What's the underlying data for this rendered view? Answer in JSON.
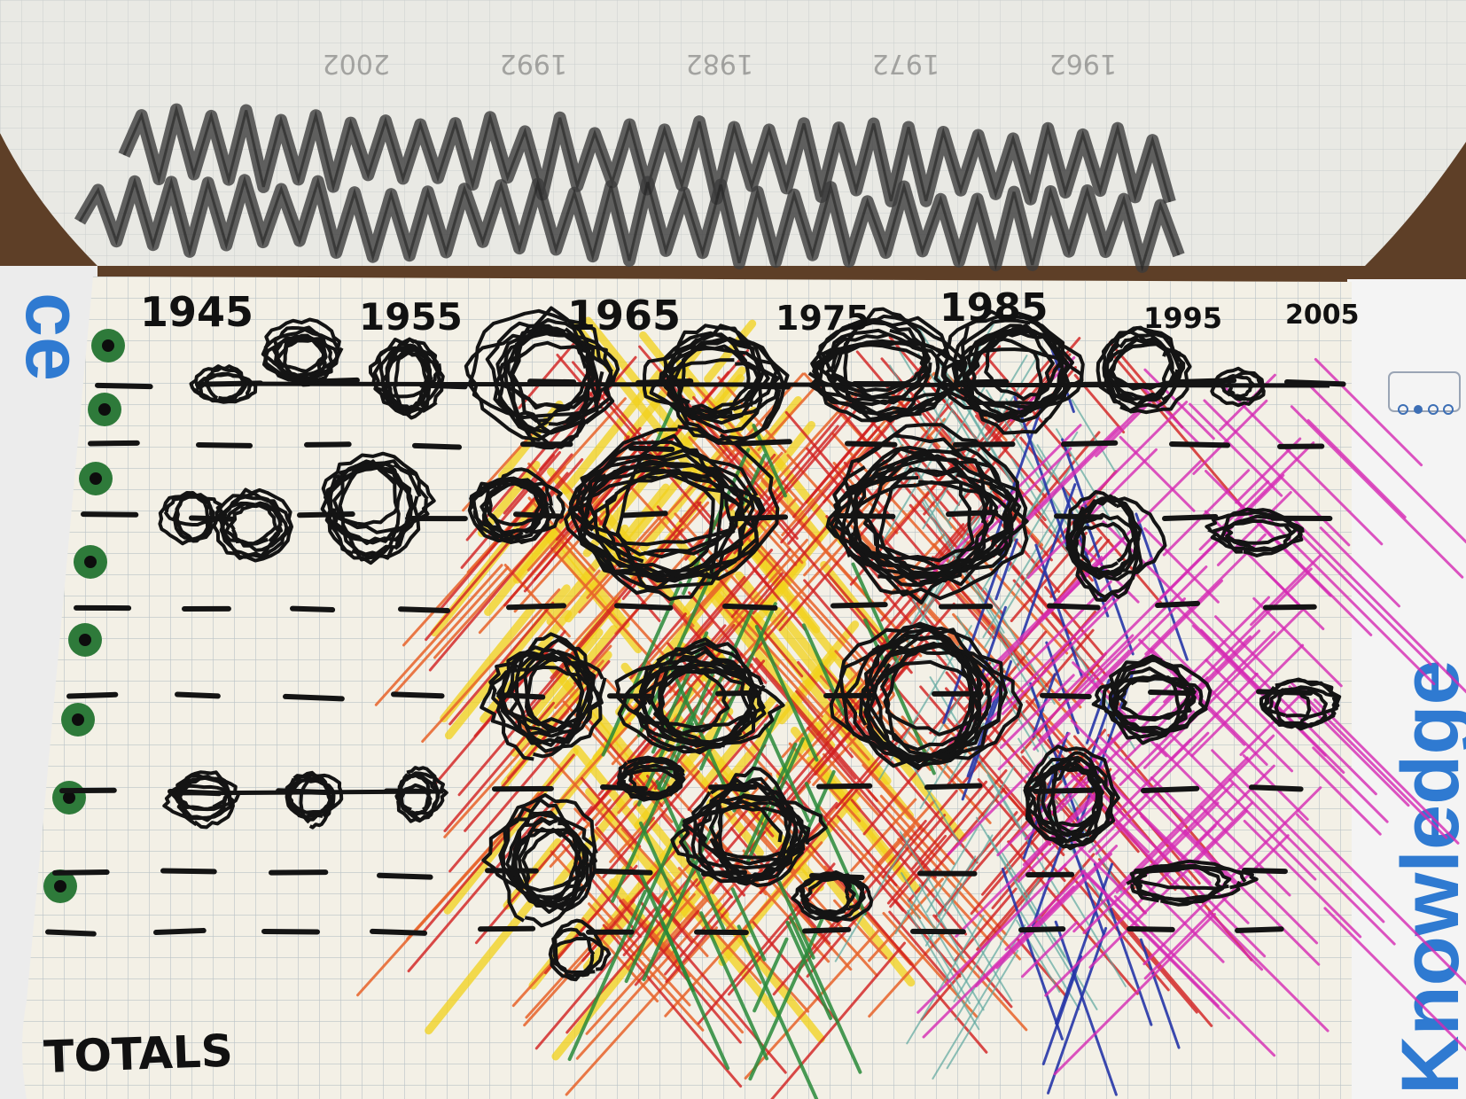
{
  "notebook": {
    "year_labels": [
      "1945",
      "1955",
      "1965",
      "1975",
      "1985",
      "1995",
      "2005"
    ],
    "totals_label": "TOTALS",
    "cover_word": "Knowledge",
    "cover_word_left": "ce",
    "back_page_faint_labels": [
      "1962",
      "1972",
      "1982",
      "1992",
      "2002"
    ],
    "ink_colors": {
      "black": "#141414",
      "yellow": "#f2d21b",
      "orange": "#e8632a",
      "red": "#d21f1f",
      "green": "#2a8a3a",
      "teal": "#5fa8a0",
      "blue": "#2636a8",
      "magenta": "#d62ab4",
      "dot_green": "#2e7a3a",
      "grid": "#b9c2c6",
      "paper": "#f3f0e6"
    },
    "row_count": 8,
    "column_count": 7
  }
}
